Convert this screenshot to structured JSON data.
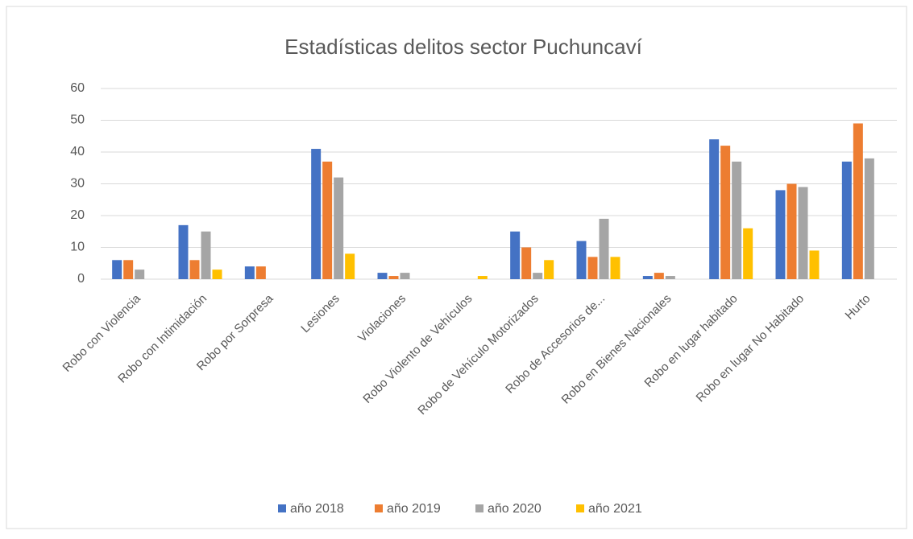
{
  "chart_data": {
    "type": "bar",
    "title": "Estadísticas delitos sector Puchuncaví",
    "categories": [
      "Robo con Violencia",
      "Robo con Intimidación",
      "Robo por Sorpresa",
      "Lesiones",
      "Violaciones",
      "Robo Violento de Vehículos",
      "Robo de Vehículo Motorizados",
      "Robo de Accesorios de...",
      "Robo en Bienes Nacionales",
      "Robo en lugar habitado",
      "Robo en lugar No Habitado",
      "Hurto"
    ],
    "series": [
      {
        "name": "año 2018",
        "color": "#4472c4",
        "values": [
          6,
          17,
          4,
          41,
          2,
          0,
          15,
          12,
          1,
          44,
          28,
          37
        ]
      },
      {
        "name": "año 2019",
        "color": "#ed7d31",
        "values": [
          6,
          6,
          4,
          37,
          1,
          0,
          10,
          7,
          2,
          42,
          30,
          49
        ]
      },
      {
        "name": "año 2020",
        "color": "#a5a5a5",
        "values": [
          3,
          15,
          0,
          32,
          2,
          0,
          2,
          19,
          1,
          37,
          29,
          38
        ]
      },
      {
        "name": "año 2021",
        "color": "#ffc000",
        "values": [
          0,
          3,
          0,
          8,
          0,
          1,
          6,
          7,
          0,
          16,
          9,
          0
        ]
      }
    ],
    "ylim": [
      0,
      60
    ],
    "yticks": [
      0,
      10,
      20,
      30,
      40,
      50,
      60
    ],
    "grid": true,
    "legend": "bottom"
  }
}
